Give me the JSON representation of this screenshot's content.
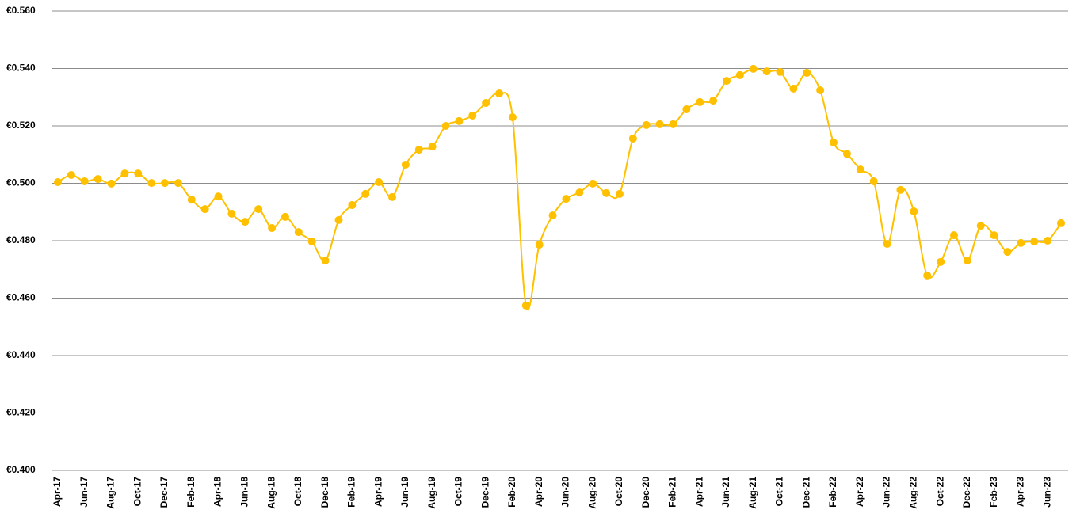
{
  "chart_data": {
    "type": "line",
    "color": "#FFC000",
    "smooth": true,
    "markers": true,
    "grid": true,
    "categories": [
      "Apr-17",
      null,
      "Jun-17",
      null,
      "Aug-17",
      null,
      "Oct-17",
      null,
      "Dec-17",
      null,
      "Feb-18",
      null,
      "Apr-18",
      null,
      "Jun-18",
      null,
      "Aug-18",
      null,
      "Oct-18",
      null,
      "Dec-18",
      null,
      "Feb-19",
      null,
      "Apr-19",
      null,
      "Jun-19",
      null,
      "Aug-19",
      null,
      "Oct-19",
      null,
      "Dec-19",
      null,
      "Feb-20",
      null,
      "Apr-20",
      null,
      "Jun-20",
      null,
      "Aug-20",
      null,
      "Oct-20",
      null,
      "Dec-20",
      null,
      "Feb-21",
      null,
      "Apr-21",
      null,
      "Jun-21",
      null,
      "Aug-21",
      null,
      "Oct-21",
      null,
      "Dec-21",
      null,
      "Feb-22",
      null,
      "Apr-22",
      null,
      "Jun-22",
      null,
      "Aug-22",
      null,
      "Oct-22",
      null,
      "Dec-22",
      null,
      "Feb-23",
      null,
      "Apr-23",
      null,
      "Jun-23",
      null
    ],
    "values": [
      0.5004,
      0.5029,
      0.5007,
      0.5015,
      0.4999,
      0.5034,
      0.5034,
      0.5001,
      0.5001,
      0.5001,
      0.4943,
      0.491,
      0.4954,
      0.4894,
      0.4866,
      0.491,
      0.4844,
      0.4883,
      0.483,
      0.4797,
      0.4731,
      0.4872,
      0.4924,
      0.4963,
      0.5004,
      0.4952,
      0.5065,
      0.5117,
      0.5128,
      0.52,
      0.5217,
      0.5236,
      0.528,
      0.5313,
      0.523,
      0.4574,
      0.4786,
      0.4888,
      0.4946,
      0.4968,
      0.4999,
      0.4966,
      0.4963,
      0.5156,
      0.5203,
      0.5206,
      0.5206,
      0.5258,
      0.5283,
      0.5288,
      0.5357,
      0.5377,
      0.5399,
      0.539,
      0.5388,
      0.533,
      0.5385,
      0.5324,
      0.5142,
      0.5103,
      0.5048,
      0.5007,
      0.4789,
      0.4977,
      0.4902,
      0.4679,
      0.4726,
      0.4819,
      0.4731,
      0.4852,
      0.4819,
      0.4761,
      0.4792,
      0.4797,
      0.48,
      0.4861
    ],
    "ylim": [
      0.4,
      0.56
    ],
    "yticks": [
      {
        "value": 0.4,
        "label": "€0.400"
      },
      {
        "value": 0.42,
        "label": "€0.420"
      },
      {
        "value": 0.44,
        "label": "€0.440"
      },
      {
        "value": 0.46,
        "label": "€0.460"
      },
      {
        "value": 0.48,
        "label": "€0.480"
      },
      {
        "value": 0.5,
        "label": "€0.500"
      },
      {
        "value": 0.52,
        "label": "€0.520"
      },
      {
        "value": 0.54,
        "label": "€0.540"
      },
      {
        "value": 0.56,
        "label": "€0.560"
      }
    ]
  }
}
